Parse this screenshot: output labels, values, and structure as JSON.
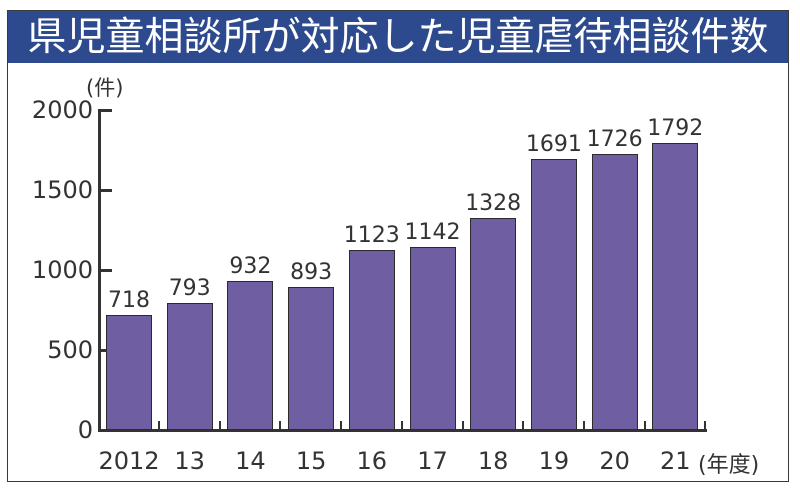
{
  "title": "県児童相談所が対応した児童虐待相談件数",
  "y_unit": "(件)",
  "x_unit": "(年度)",
  "colors": {
    "title_bg": "#2e4a8e",
    "bar": "#705ea2",
    "bar_border": "#2b2b2b",
    "axis": "#333333"
  },
  "y_ticks": [
    "0",
    "500",
    "1000",
    "1500",
    "2000"
  ],
  "x_labels": [
    "2012",
    "13",
    "14",
    "15",
    "16",
    "17",
    "18",
    "19",
    "20",
    "21"
  ],
  "value_labels": [
    "718",
    "793",
    "932",
    "893",
    "1123",
    "1142",
    "1328",
    "1691",
    "1726",
    "1792"
  ],
  "chart_data": {
    "type": "bar",
    "title": "県児童相談所が対応した児童虐待相談件数",
    "categories": [
      "2012",
      "13",
      "14",
      "15",
      "16",
      "17",
      "18",
      "19",
      "20",
      "21"
    ],
    "values": [
      718,
      793,
      932,
      893,
      1123,
      1142,
      1328,
      1691,
      1726,
      1792
    ],
    "xlabel": "(年度)",
    "ylabel": "(件)",
    "ylim": [
      0,
      2000
    ],
    "yticks": [
      0,
      500,
      1000,
      1500,
      2000
    ],
    "grid": false,
    "legend": null,
    "data_labels": true
  }
}
